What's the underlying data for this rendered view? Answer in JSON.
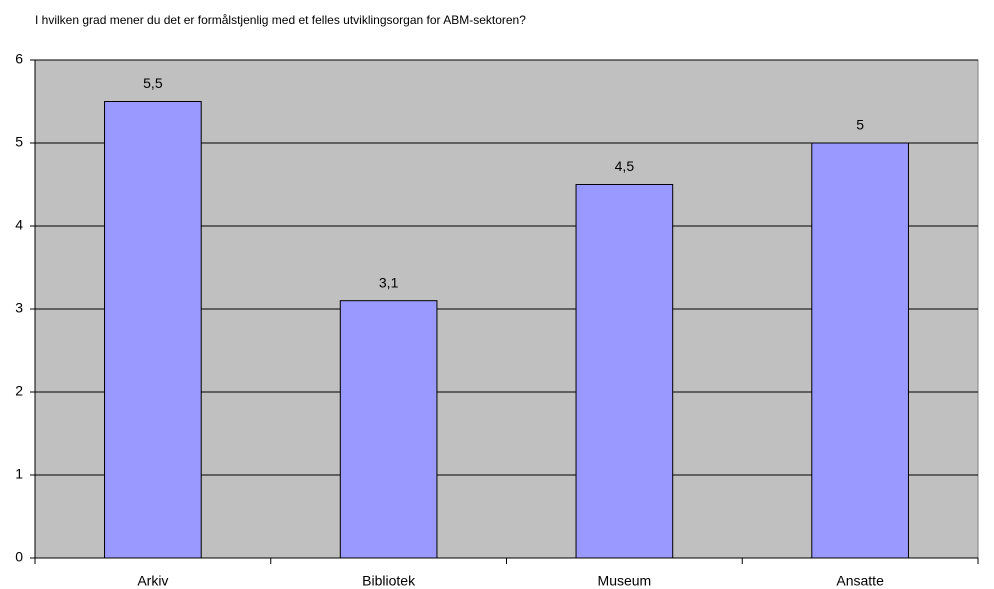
{
  "chart_data": {
    "type": "bar",
    "title": "I hvilken grad mener du det er formålstjenlig med et felles utviklingsorgan for ABM-sektoren?",
    "categories": [
      "Arkiv",
      "Bibliotek",
      "Museum",
      "Ansatte"
    ],
    "values": [
      5.5,
      3.1,
      4.5,
      5
    ],
    "value_labels": [
      "5,5",
      "3,1",
      "4,5",
      "5"
    ],
    "color": "#9999ff",
    "ylim": [
      0,
      6
    ],
    "yticks": [
      0,
      1,
      2,
      3,
      4,
      5,
      6
    ],
    "grid": true
  }
}
